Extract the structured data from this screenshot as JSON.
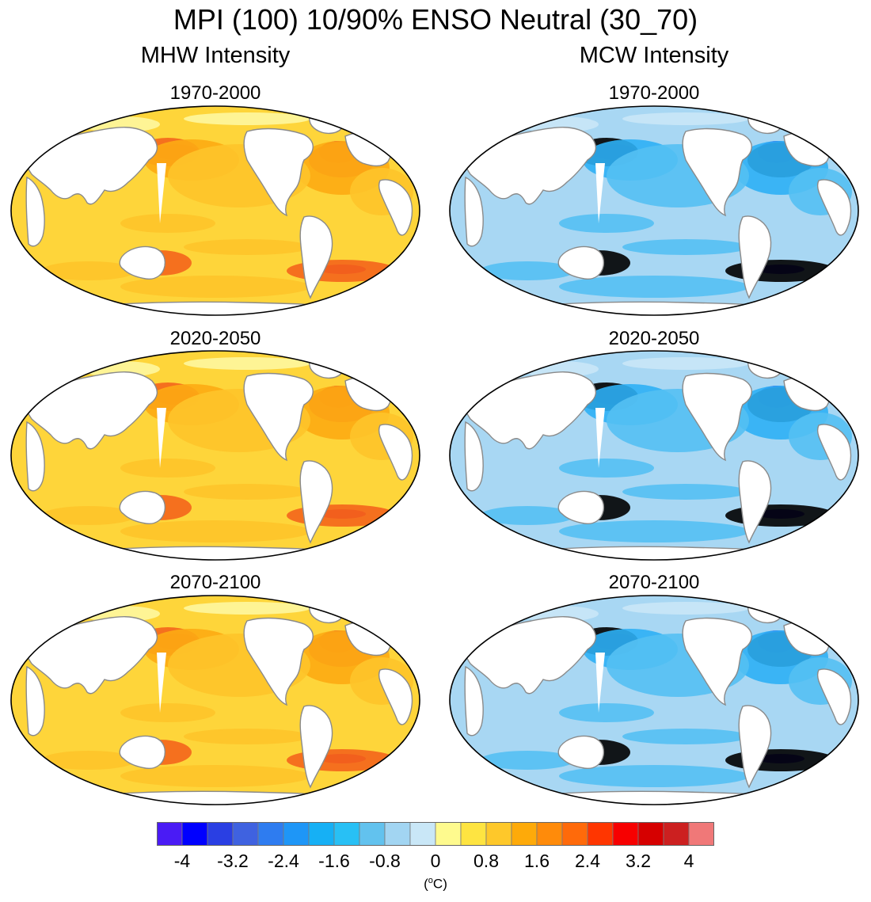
{
  "title": "MPI (100) 10/90% ENSO Neutral (30_70)",
  "columns": [
    "MHW Intensity",
    "MCW Intensity"
  ],
  "periods": [
    "1970-2000",
    "2020-2050",
    "2070-2100"
  ],
  "colorbar": {
    "colors": [
      "#4a1bf5",
      "#0000ff",
      "#2a3fe3",
      "#3f62e0",
      "#2e7cf0",
      "#1e96f7",
      "#16b0f5",
      "#28c0f5",
      "#62c2ee",
      "#a2d5f2",
      "#c9e7f7",
      "#fefa8e",
      "#fee441",
      "#fec82a",
      "#feaa09",
      "#ff8b0a",
      "#ff6a0a",
      "#ff3600",
      "#f70000",
      "#d60000",
      "#cc2020",
      "#f07878"
    ],
    "tick_labels": [
      "-4",
      "-3.2",
      "-2.4",
      "-1.6",
      "-0.8",
      "0",
      "0.8",
      "1.6",
      "2.4",
      "3.2",
      "4"
    ],
    "tick_values": [
      -4,
      -3.2,
      -2.4,
      -1.6,
      -0.8,
      0,
      0.8,
      1.6,
      2.4,
      3.2,
      4
    ],
    "units": "(oC)"
  },
  "map_style": {
    "mhw": {
      "base": "#fed53a",
      "mid": "#fec42a",
      "strong": "#fdab13",
      "hot": "#f4651c",
      "max": "#d8182a",
      "polar": "#fef7a0"
    },
    "mcw": {
      "base": "#a8d7f3",
      "mid": "#54c0f3",
      "strong": "#2eb0f5",
      "cold": "#3f62e0",
      "max": "#2a1fd8",
      "polar": "#c9e7f7"
    },
    "land": "#ffffff",
    "coast": "#8a8a8a"
  }
}
